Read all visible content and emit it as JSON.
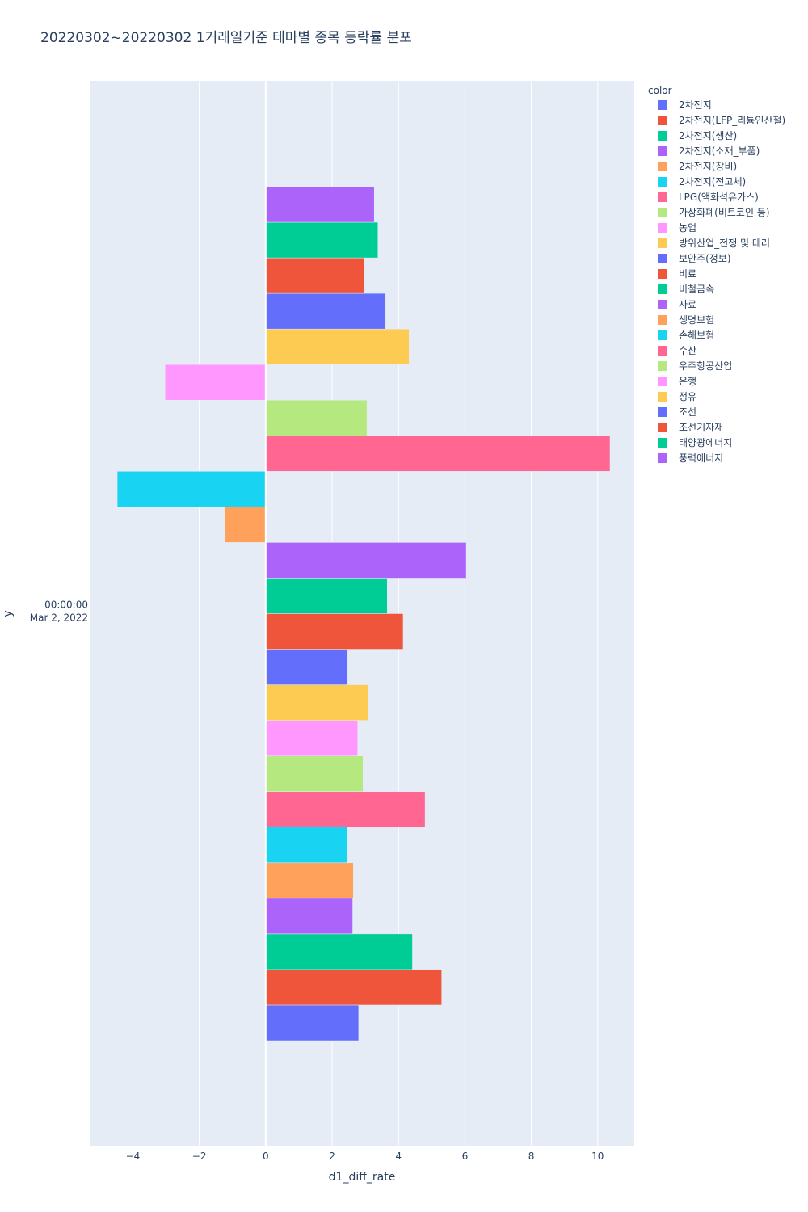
{
  "chart_data": {
    "type": "bar",
    "orientation": "horizontal",
    "title": "20220302~20220302 1거래일기준 테마별 종목 등락률 분포",
    "xlabel": "d1_diff_rate",
    "ylabel": "y",
    "y_category": [
      "00:00:00",
      "Mar 2, 2022"
    ],
    "xlim": [
      -5.3,
      11.1
    ],
    "xticks": [
      -4,
      -2,
      0,
      2,
      4,
      6,
      8,
      10
    ],
    "xtick_labels": [
      "−4",
      "−2",
      "0",
      "2",
      "4",
      "6",
      "8",
      "10"
    ],
    "legend_title": "color",
    "legend_position": "top-right",
    "grid": true,
    "series": [
      {
        "name": "2차전지",
        "color": "#636efa",
        "value": 2.8
      },
      {
        "name": "2차전지(LFP_리튬인산철)",
        "color": "#EF553B",
        "value": 5.3
      },
      {
        "name": "2차전지(생산)",
        "color": "#00cc96",
        "value": 4.42
      },
      {
        "name": "2차전지(소재_부품)",
        "color": "#ab63fa",
        "value": 2.62
      },
      {
        "name": "2차전지(장비)",
        "color": "#FFA15A",
        "value": 2.64
      },
      {
        "name": "2차전지(전고체)",
        "color": "#19d3f3",
        "value": 2.47
      },
      {
        "name": "LPG(액화석유가스)",
        "color": "#FF6692",
        "value": 4.8
      },
      {
        "name": "가상화폐(비트코인 등)",
        "color": "#B6E880",
        "value": 2.93
      },
      {
        "name": "농업",
        "color": "#FF97FF",
        "value": 2.77
      },
      {
        "name": "방위산업_전쟁 및 테러",
        "color": "#FECB52",
        "value": 3.08
      },
      {
        "name": "보안주(정보)",
        "color": "#636efa",
        "value": 2.47
      },
      {
        "name": "비료",
        "color": "#EF553B",
        "value": 4.14
      },
      {
        "name": "비철금속",
        "color": "#00cc96",
        "value": 3.66
      },
      {
        "name": "사료",
        "color": "#ab63fa",
        "value": 6.04
      },
      {
        "name": "생명보험",
        "color": "#FFA15A",
        "value": -1.22
      },
      {
        "name": "손해보험",
        "color": "#19d3f3",
        "value": -4.47
      },
      {
        "name": "수산",
        "color": "#FF6692",
        "value": 10.37
      },
      {
        "name": "우주항공산업",
        "color": "#B6E880",
        "value": 3.05
      },
      {
        "name": "은행",
        "color": "#FF97FF",
        "value": -3.03
      },
      {
        "name": "정유",
        "color": "#FECB52",
        "value": 4.32
      },
      {
        "name": "조선",
        "color": "#636efa",
        "value": 3.61
      },
      {
        "name": "조선기자재",
        "color": "#EF553B",
        "value": 2.98
      },
      {
        "name": "태양광에너지",
        "color": "#00cc96",
        "value": 3.38
      },
      {
        "name": "풍력에너지",
        "color": "#ab63fa",
        "value": 3.27
      }
    ]
  }
}
